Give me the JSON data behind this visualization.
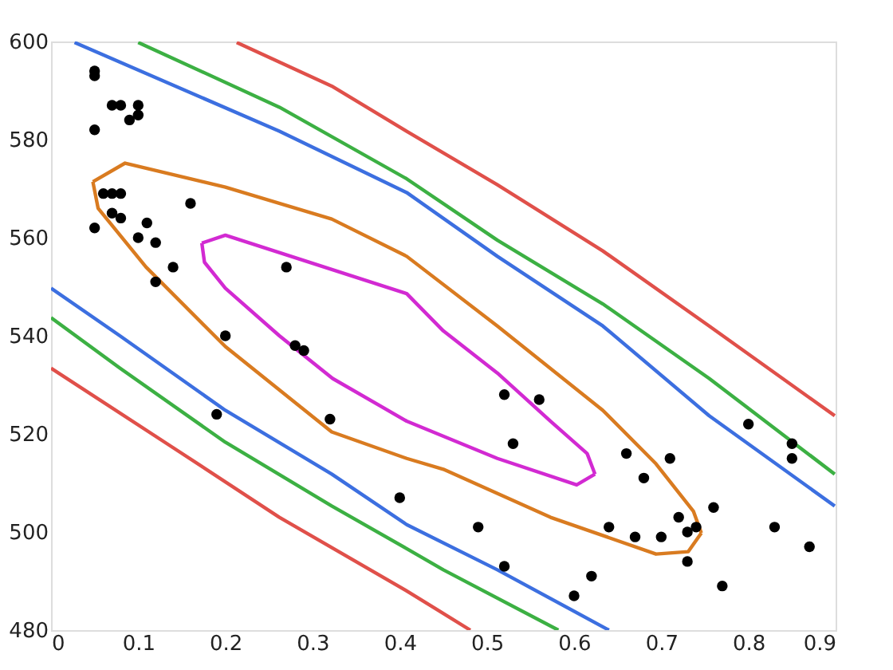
{
  "chart_data": {
    "type": "scatter",
    "xlim": [
      0,
      0.9
    ],
    "ylim": [
      480,
      600
    ],
    "xticks": [
      0,
      0.1,
      0.2,
      0.3,
      0.4,
      0.5,
      0.6,
      0.7,
      0.8,
      0.9
    ],
    "yticks": [
      480,
      500,
      520,
      540,
      560,
      580,
      600
    ],
    "grid": false,
    "series": [
      {
        "type": "line",
        "color": "#e0504a",
        "x": [
          0.213,
          0.322,
          0.408,
          0.512,
          0.633,
          0.755,
          0.899
        ],
        "values": [
          599.8,
          590.9,
          581.7,
          570.8,
          557.3,
          542,
          523.7
        ]
      },
      {
        "type": "line",
        "color": "#3cb043",
        "x": [
          0.1,
          0.262,
          0.408,
          0.512,
          0.633,
          0.755,
          0.899
        ],
        "values": [
          599.8,
          586.6,
          572,
          559.5,
          546.5,
          531.3,
          511.8
        ]
      },
      {
        "type": "line",
        "color": "#3c6fe0",
        "x": [
          0.027,
          0.262,
          0.408,
          0.512,
          0.633,
          0.755,
          0.899
        ],
        "values": [
          599.8,
          581.7,
          569.2,
          556.2,
          542,
          523.7,
          505.3
        ]
      },
      {
        "type": "line",
        "color": "#3c6fe0",
        "x": [
          0,
          0.079,
          0.2,
          0.322,
          0.408,
          0.512,
          0.64
        ],
        "values": [
          549.7,
          540,
          524.8,
          511.8,
          501.5,
          492.3,
          480
        ]
      },
      {
        "type": "line",
        "color": "#3cb043",
        "x": [
          0,
          0.079,
          0.2,
          0.322,
          0.408,
          0.45,
          0.582
        ],
        "values": [
          543.7,
          533.4,
          518.3,
          505.3,
          496.6,
          492.3,
          480
        ]
      },
      {
        "type": "line",
        "color": "#e0504a",
        "x": [
          0,
          0.14,
          0.262,
          0.408,
          0.481
        ],
        "values": [
          533.4,
          517.2,
          503,
          488,
          480
        ]
      },
      {
        "type": "line",
        "color": "#d97b20",
        "x": [
          0.048,
          0.085,
          0.2,
          0.322,
          0.408,
          0.512,
          0.633,
          0.694,
          0.737,
          0.746
        ],
        "values": [
          571.4,
          575.2,
          570.3,
          563.8,
          556.2,
          542,
          524.8,
          513.9,
          504.2,
          499.8
        ]
      },
      {
        "type": "line",
        "color": "#d97b20",
        "x": [
          0.048,
          0.054,
          0.109,
          0.2,
          0.322,
          0.408,
          0.45,
          0.573,
          0.694,
          0.731,
          0.746
        ],
        "values": [
          571.4,
          566,
          554,
          537.8,
          520.4,
          515,
          512.8,
          503,
          495.5,
          496,
          499.8
        ]
      },
      {
        "type": "line",
        "color": "#d22ad2",
        "x": [
          0.173,
          0.2,
          0.408,
          0.45,
          0.512,
          0.573,
          0.615,
          0.624
        ],
        "values": [
          558.9,
          560.5,
          548.6,
          541,
          532.4,
          522.6,
          516,
          511.8
        ]
      },
      {
        "type": "line",
        "color": "#d22ad2",
        "x": [
          0.173,
          0.176,
          0.2,
          0.262,
          0.323,
          0.408,
          0.512,
          0.603,
          0.624
        ],
        "values": [
          558.9,
          555,
          549.7,
          540,
          531.3,
          522.6,
          515,
          509.6,
          511.8
        ]
      },
      {
        "color": "#000000",
        "marker": "circle",
        "x": [
          0.05,
          0.05,
          0.05,
          0.07,
          0.08,
          0.09,
          0.1,
          0.1,
          0.06,
          0.07,
          0.08,
          0.05,
          0.07,
          0.08,
          0.1,
          0.11,
          0.12,
          0.12,
          0.14,
          0.16,
          0.2,
          0.19,
          0.27,
          0.28,
          0.29,
          0.32,
          0.4,
          0.52,
          0.56,
          0.53,
          0.49,
          0.52,
          0.6,
          0.62,
          0.64,
          0.66,
          0.67,
          0.68,
          0.7,
          0.71,
          0.72,
          0.73,
          0.74,
          0.73,
          0.76,
          0.77,
          0.8,
          0.83,
          0.85,
          0.85,
          0.87
        ],
        "values": [
          594,
          593,
          582,
          587,
          587,
          584,
          587,
          585,
          569,
          569,
          569,
          562,
          565,
          564,
          560,
          563,
          559,
          551,
          554,
          567,
          540,
          524,
          554,
          538,
          537,
          523,
          507,
          528,
          527,
          518,
          501,
          493,
          487,
          491,
          501,
          516,
          499,
          511,
          499,
          515,
          503,
          500,
          501,
          494,
          505,
          489,
          522,
          501,
          518,
          515,
          497
        ]
      }
    ]
  }
}
